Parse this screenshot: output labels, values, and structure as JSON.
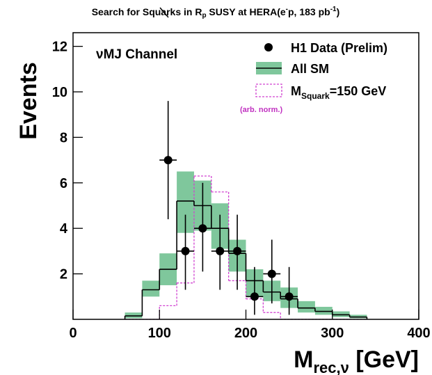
{
  "chart_data": {
    "type": "histogram",
    "title": [
      "Search for Squarks in R",
      "p",
      " SUSY at HERA(e",
      "-",
      "p, 183 pb",
      "-1",
      ")"
    ],
    "ylabel": "Events",
    "xlabel": [
      "M",
      "rec,ν",
      " [GeV]"
    ],
    "annotations": [
      "νMJ Channel",
      "(arb. norm.)"
    ],
    "bins": [
      60,
      80,
      100,
      120,
      140,
      160,
      180,
      200,
      220,
      240,
      260,
      280,
      300,
      320,
      340
    ],
    "series": [
      {
        "name": "All SM",
        "color": "#7fc79c",
        "line_color": "#000000",
        "values": [
          0.15,
          1.3,
          2.2,
          5.2,
          5.0,
          4.0,
          2.9,
          1.7,
          1.2,
          0.9,
          0.5,
          0.35,
          0.2,
          0.1
        ],
        "lower": [
          0.05,
          1.0,
          1.5,
          3.8,
          3.9,
          3.1,
          2.1,
          1.0,
          0.8,
          0.5,
          0.3,
          0.2,
          0.1,
          0.05
        ],
        "upper": [
          0.3,
          1.7,
          2.9,
          6.5,
          6.1,
          5.1,
          3.5,
          2.2,
          1.7,
          1.4,
          0.8,
          0.55,
          0.35,
          0.2
        ]
      },
      {
        "name": [
          "M",
          "Squark",
          "=150 GeV"
        ],
        "color": "#d040d0",
        "values": [
          0,
          0,
          0.6,
          1.6,
          6.3,
          5.6,
          1.7,
          0.9,
          0.3,
          0,
          0,
          0,
          0,
          0
        ]
      }
    ],
    "points": {
      "name": "H1 Data (Prelim)",
      "color": "#000000",
      "x": [
        110,
        130,
        150,
        170,
        190,
        210,
        230,
        250
      ],
      "values": [
        7,
        3,
        4,
        3,
        3,
        1,
        2,
        1
      ],
      "err_low": [
        2.6,
        1.7,
        1.9,
        1.7,
        1.7,
        0.8,
        1.3,
        0.8
      ],
      "err_high": [
        2.6,
        1.6,
        2.0,
        1.6,
        1.6,
        1.3,
        1.5,
        1.3
      ],
      "x_halfwidth": [
        10,
        10,
        10,
        10,
        10,
        10,
        10,
        10
      ]
    },
    "xlim": [
      0,
      400
    ],
    "xticks": [
      0,
      100,
      200,
      300,
      400
    ],
    "ylim": [
      0,
      12.6
    ],
    "yticks": [
      2,
      4,
      6,
      8,
      10,
      12
    ]
  }
}
